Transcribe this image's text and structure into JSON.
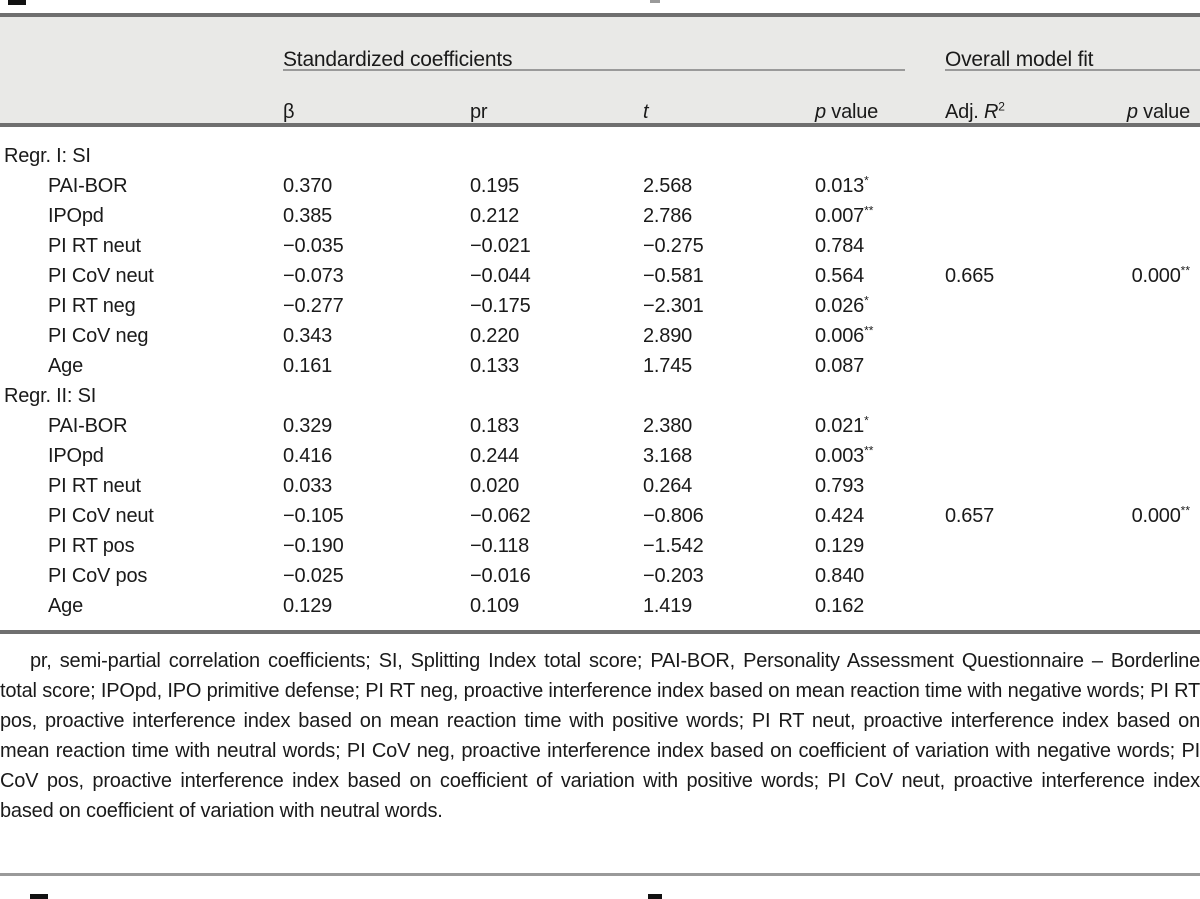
{
  "colors": {
    "header_band": "#e9e9e7",
    "rule_dark": "#6f6f6f",
    "rule_light": "#9a9a9a",
    "text": "#1a1a1a"
  },
  "header": {
    "group1": "Standardized coefficients",
    "group2": "Overall model fit",
    "columns": {
      "beta": "β",
      "pr": "pr",
      "t": "t",
      "p_italic": "p",
      "p_rest": " value",
      "adj_prefix": "Adj. ",
      "adj_italic": "R",
      "adj_sup": "2",
      "model_p_italic": "p",
      "model_p_rest": " value"
    }
  },
  "sections": [
    {
      "title": "Regr. I: SI",
      "rows": [
        {
          "label": "PAI-BOR",
          "beta": "0.370",
          "pr": "0.195",
          "t": "2.568",
          "p": "0.013",
          "p_sup": "*",
          "adj_r2": "",
          "model_p": "",
          "model_p_sup": ""
        },
        {
          "label": "IPOpd",
          "beta": "0.385",
          "pr": "0.212",
          "t": "2.786",
          "p": "0.007",
          "p_sup": "**",
          "adj_r2": "",
          "model_p": "",
          "model_p_sup": ""
        },
        {
          "label": "PI RT neut",
          "beta": "−0.035",
          "pr": "−0.021",
          "t": "−0.275",
          "p": "0.784",
          "p_sup": "",
          "adj_r2": "",
          "model_p": "",
          "model_p_sup": ""
        },
        {
          "label": "PI CoV neut",
          "beta": "−0.073",
          "pr": "−0.044",
          "t": "−0.581",
          "p": "0.564",
          "p_sup": "",
          "adj_r2": "0.665",
          "model_p": "0.000",
          "model_p_sup": "**"
        },
        {
          "label": "PI RT neg",
          "beta": "−0.277",
          "pr": "−0.175",
          "t": "−2.301",
          "p": "0.026",
          "p_sup": "*",
          "adj_r2": "",
          "model_p": "",
          "model_p_sup": ""
        },
        {
          "label": "PI CoV neg",
          "beta": "0.343",
          "pr": "0.220",
          "t": "2.890",
          "p": "0.006",
          "p_sup": "**",
          "adj_r2": "",
          "model_p": "",
          "model_p_sup": ""
        },
        {
          "label": "Age",
          "beta": "0.161",
          "pr": "0.133",
          "t": "1.745",
          "p": "0.087",
          "p_sup": "",
          "adj_r2": "",
          "model_p": "",
          "model_p_sup": ""
        }
      ]
    },
    {
      "title": "Regr. II: SI",
      "rows": [
        {
          "label": "PAI-BOR",
          "beta": "0.329",
          "pr": "0.183",
          "t": "2.380",
          "p": "0.021",
          "p_sup": "*",
          "adj_r2": "",
          "model_p": "",
          "model_p_sup": ""
        },
        {
          "label": "IPOpd",
          "beta": "0.416",
          "pr": "0.244",
          "t": "3.168",
          "p": "0.003",
          "p_sup": "**",
          "adj_r2": "",
          "model_p": "",
          "model_p_sup": ""
        },
        {
          "label": "PI RT neut",
          "beta": "0.033",
          "pr": "0.020",
          "t": "0.264",
          "p": "0.793",
          "p_sup": "",
          "adj_r2": "",
          "model_p": "",
          "model_p_sup": ""
        },
        {
          "label": "PI CoV neut",
          "beta": "−0.105",
          "pr": "−0.062",
          "t": "−0.806",
          "p": "0.424",
          "p_sup": "",
          "adj_r2": "0.657",
          "model_p": "0.000",
          "model_p_sup": "**"
        },
        {
          "label": "PI RT pos",
          "beta": "−0.190",
          "pr": "−0.118",
          "t": "−1.542",
          "p": "0.129",
          "p_sup": "",
          "adj_r2": "",
          "model_p": "",
          "model_p_sup": ""
        },
        {
          "label": "PI CoV pos",
          "beta": "−0.025",
          "pr": "−0.016",
          "t": "−0.203",
          "p": "0.840",
          "p_sup": "",
          "adj_r2": "",
          "model_p": "",
          "model_p_sup": ""
        },
        {
          "label": "Age",
          "beta": "0.129",
          "pr": "0.109",
          "t": "1.419",
          "p": "0.162",
          "p_sup": "",
          "adj_r2": "",
          "model_p": "",
          "model_p_sup": ""
        }
      ]
    }
  ],
  "footnote": "pr, semi-partial correlation coefficients; SI, Splitting Index total score; PAI-BOR, Personality Assessment Questionnaire – Borderline total score; IPOpd, IPO primitive defense; PI RT neg, proactive interference index based on mean reaction time with negative words; PI RT pos, proactive interference index based on mean reaction time with positive words; PI RT neut, proactive interference index based on mean reaction time with neutral words; PI CoV neg, proactive interference index based on coefficient of variation with negative words; PI CoV pos, proactive interference index based on coefficient of variation with positive words; PI CoV neut, proactive interference index based on coefficient of variation with neutral words."
}
